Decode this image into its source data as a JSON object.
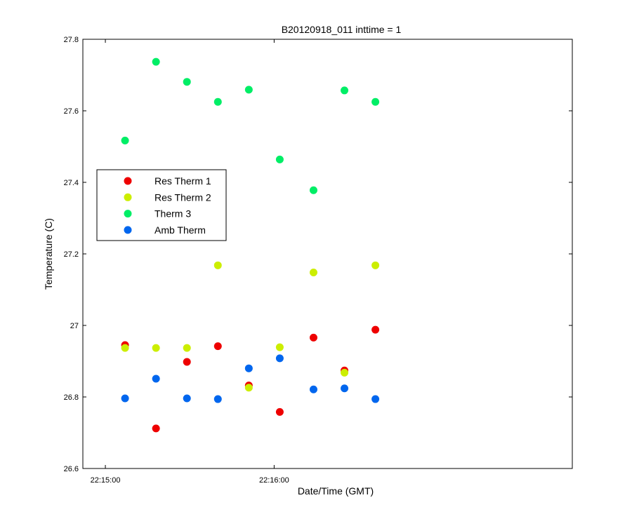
{
  "chart_data": {
    "type": "scatter",
    "title": "B20120918_011 inttime = 1",
    "xlabel": "Date/Time (GMT)",
    "ylabel": "Temperature (C)",
    "xlim": [
      "22:14:52",
      "22:17:46"
    ],
    "ylim": [
      26.6,
      27.8
    ],
    "x_ticks": [
      "22:15:00",
      "22:16:00"
    ],
    "y_ticks": [
      "26.6",
      "26.8",
      "27",
      "27.2",
      "27.4",
      "27.6",
      "27.8"
    ],
    "x": [
      "22:15:07",
      "22:15:18",
      "22:15:29",
      "22:15:40",
      "22:15:51",
      "22:16:02",
      "22:16:14",
      "22:16:25",
      "22:16:36"
    ],
    "legend_position": "upper-left",
    "grid": false,
    "series": [
      {
        "name": "Res Therm 1",
        "color": "#ee0000",
        "values": [
          26.945,
          26.712,
          26.898,
          26.942,
          26.832,
          26.758,
          26.966,
          26.874,
          26.988
        ]
      },
      {
        "name": "Res Therm 2",
        "color": "#ccee00",
        "values": [
          26.937,
          26.937,
          26.937,
          27.168,
          26.826,
          26.939,
          27.148,
          26.868,
          27.168
        ]
      },
      {
        "name": "Therm 3",
        "color": "#00ee66",
        "values": [
          27.517,
          27.737,
          27.681,
          27.625,
          27.659,
          27.464,
          27.378,
          27.657,
          27.625
        ]
      },
      {
        "name": "Amb Therm",
        "color": "#0066ee",
        "values": [
          26.796,
          26.851,
          26.796,
          26.794,
          26.88,
          26.908,
          26.821,
          26.824,
          26.794
        ]
      }
    ]
  }
}
